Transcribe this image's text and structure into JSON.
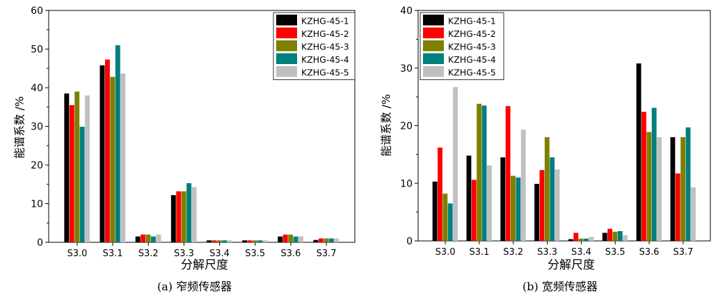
{
  "colors": {
    "series": [
      "#000000",
      "#ff0000",
      "#7f7f00",
      "#007f7f",
      "#c0c0c0"
    ]
  },
  "chart_data": [
    {
      "type": "bar",
      "title": "",
      "xlabel": "分解尺度",
      "ylabel": "能谱系数 /%",
      "caption": "(a) 窄频传感器",
      "ylim": [
        0,
        60
      ],
      "yticks": [
        0,
        10,
        20,
        30,
        40,
        50,
        60
      ],
      "categories": [
        "S3.0",
        "S3.1",
        "S3.2",
        "S3.3",
        "S3.4",
        "S3.5",
        "S3.6",
        "S3.7"
      ],
      "legend_position": "top-right",
      "grid": false,
      "series": [
        {
          "name": "KZHG-45-1",
          "values": [
            38.5,
            45.8,
            1.5,
            12.2,
            0.5,
            0.5,
            1.5,
            0.6
          ]
        },
        {
          "name": "KZHG-45-2",
          "values": [
            35.5,
            47.3,
            2.0,
            13.2,
            0.5,
            0.5,
            2.0,
            1.0
          ]
        },
        {
          "name": "KZHG-45-3",
          "values": [
            39.0,
            42.8,
            2.0,
            13.2,
            0.5,
            0.5,
            2.0,
            1.0
          ]
        },
        {
          "name": "KZHG-45-4",
          "values": [
            29.9,
            51.0,
            1.5,
            15.3,
            0.5,
            0.5,
            1.5,
            1.0
          ]
        },
        {
          "name": "KZHG-45-5",
          "values": [
            38.0,
            43.7,
            2.0,
            14.3,
            0.5,
            0.5,
            1.5,
            1.0
          ]
        }
      ]
    },
    {
      "type": "bar",
      "title": "",
      "xlabel": "分解尺度",
      "ylabel": "能谱系数 /%",
      "caption": "(b) 宽频传感器",
      "ylim": [
        0,
        40
      ],
      "yticks": [
        0,
        10,
        20,
        30,
        40
      ],
      "categories": [
        "S3.0",
        "S3.1",
        "S3.2",
        "S3.3",
        "S3.4",
        "S3.5",
        "S3.6",
        "S3.7"
      ],
      "legend_position": "top-left",
      "grid": false,
      "series": [
        {
          "name": "KZHG-45-1",
          "values": [
            10.3,
            14.8,
            14.5,
            9.9,
            0.3,
            1.4,
            30.8,
            18.0
          ]
        },
        {
          "name": "KZHG-45-2",
          "values": [
            16.2,
            10.6,
            23.4,
            12.3,
            1.4,
            2.1,
            22.4,
            11.7
          ]
        },
        {
          "name": "KZHG-45-3",
          "values": [
            8.2,
            23.8,
            11.3,
            18.0,
            0.4,
            1.6,
            18.9,
            18.0
          ]
        },
        {
          "name": "KZHG-45-4",
          "values": [
            6.5,
            23.5,
            11.0,
            14.5,
            0.4,
            1.7,
            23.1,
            19.7
          ]
        },
        {
          "name": "KZHG-45-5",
          "values": [
            26.7,
            13.1,
            19.3,
            12.4,
            0.7,
            1.0,
            18.0,
            9.3
          ]
        }
      ]
    }
  ]
}
